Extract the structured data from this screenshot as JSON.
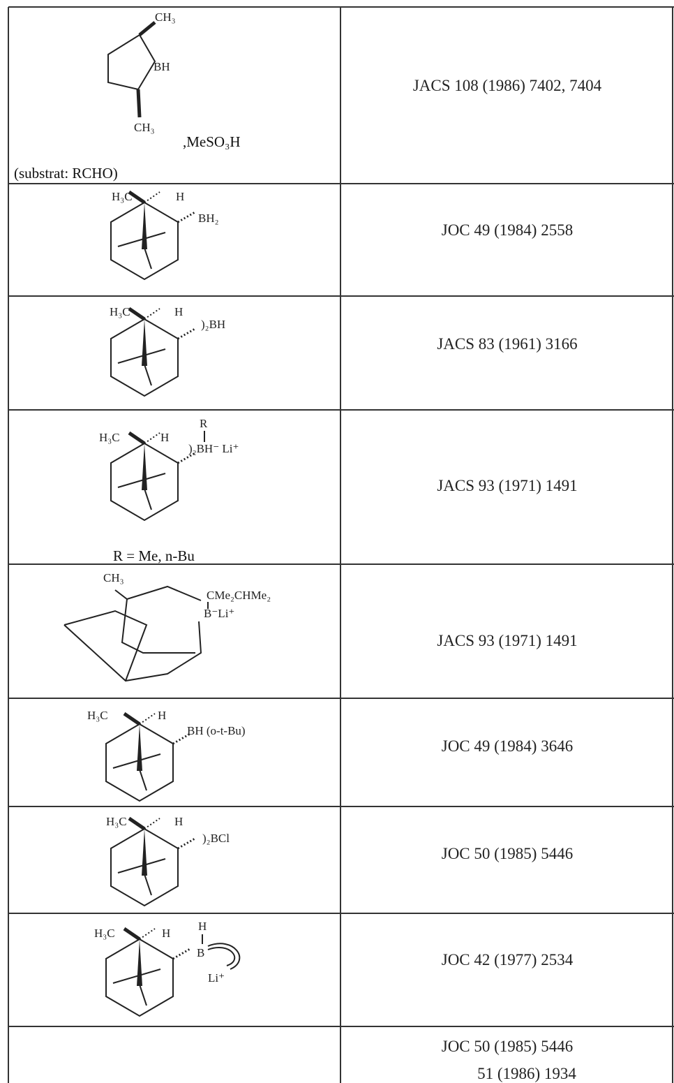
{
  "rows": [
    {
      "structure": {
        "labels": [
          "CH₃",
          "BH",
          "CH₃",
          ",MeSO₃H"
        ],
        "note": "(substrat: RCHO)"
      },
      "reference": [
        "JACS 108 (1986) 7402, 7404"
      ]
    },
    {
      "structure": {
        "labels": [
          "H₃C",
          "H",
          "BH₂"
        ]
      },
      "reference": [
        "JOC 49 (1984) 2558"
      ]
    },
    {
      "structure": {
        "labels": [
          "H₃C",
          "H",
          ")₂BH"
        ]
      },
      "reference": [
        "JACS 83 (1961) 3166"
      ]
    },
    {
      "structure": {
        "labels": [
          "R",
          "H₃C",
          "H",
          ")₂BH⁻ Li⁺"
        ],
        "note": "R = Me, n-Bu"
      },
      "reference": [
        "JACS 93 (1971) 1491"
      ]
    },
    {
      "structure": {
        "labels": [
          "CH₃",
          "CMe₂CHMe₂",
          "B⁻Li⁺"
        ]
      },
      "reference": [
        "JACS 93 (1971) 1491"
      ]
    },
    {
      "structure": {
        "labels": [
          "H₃C",
          "H",
          "BH (o-t-Bu)"
        ]
      },
      "reference": [
        "JOC 49 (1984) 3646"
      ]
    },
    {
      "structure": {
        "labels": [
          "H₃C",
          "H",
          ")₂BCl"
        ]
      },
      "reference": [
        "JOC 50 (1985) 5446"
      ]
    },
    {
      "structure": {
        "labels": [
          "H₃C",
          "H",
          "H",
          "B",
          "Li⁺"
        ]
      },
      "reference": [
        "JOC 42 (1977) 2534"
      ]
    },
    {
      "reference": [
        "JOC 50 (1985) 5446",
        "51 (1986) 1934"
      ]
    }
  ]
}
